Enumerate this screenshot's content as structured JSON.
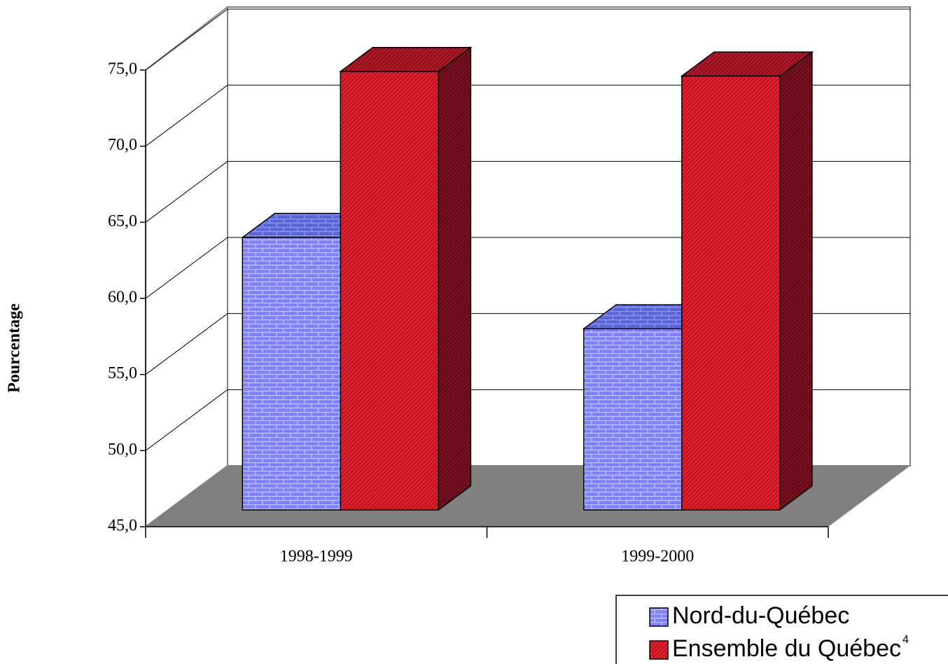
{
  "chart_data": {
    "type": "bar3d",
    "y_label": "Pourcentage",
    "categories": [
      "1998-1999",
      "1999-2000"
    ],
    "series": [
      {
        "name": "Nord-du-Québec",
        "color": "#8080ff",
        "values": [
          62.9,
          56.9
        ]
      },
      {
        "name": "Ensemble du Québec",
        "color": "#e0202a",
        "values": [
          73.8,
          73.5
        ],
        "footnote_ref": "4"
      }
    ],
    "ylim": [
      45,
      75
    ],
    "yticks": [
      {
        "value": 45,
        "label": "45,0"
      },
      {
        "value": 50,
        "label": "50,0"
      },
      {
        "value": 55,
        "label": "55,0"
      },
      {
        "value": 60,
        "label": "60,0"
      },
      {
        "value": 65,
        "label": "65,0"
      },
      {
        "value": 70,
        "label": "70,0"
      },
      {
        "value": 75,
        "label": "75,0"
      }
    ],
    "grid": true
  }
}
